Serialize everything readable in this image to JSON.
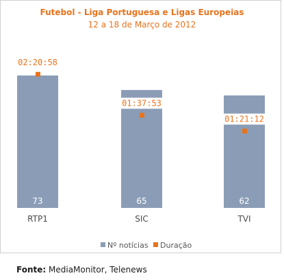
{
  "chart_data": {
    "type": "bar",
    "title": "Futebol - Liga Portuguesa e Ligas Europeias",
    "subtitle": "12 a 18 de Março de 2012",
    "categories": [
      "RTP1",
      "SIC",
      "TVI"
    ],
    "series": [
      {
        "name": "Nº notícias",
        "type": "bar",
        "values": [
          73,
          65,
          62
        ],
        "color": "#8b9db6"
      },
      {
        "name": "Duração",
        "type": "point",
        "values": [
          "02:20:58",
          "01:37:53",
          "01:21:12"
        ],
        "color": "#e8731c"
      }
    ],
    "ylim": [
      0,
      73
    ],
    "duration_ylim": [
      "00:00:00",
      "02:54:00"
    ],
    "legend_position": "bottom",
    "grid": false
  },
  "source": {
    "label": "Fonte:",
    "text": "MediaMonitor, Telenews"
  }
}
